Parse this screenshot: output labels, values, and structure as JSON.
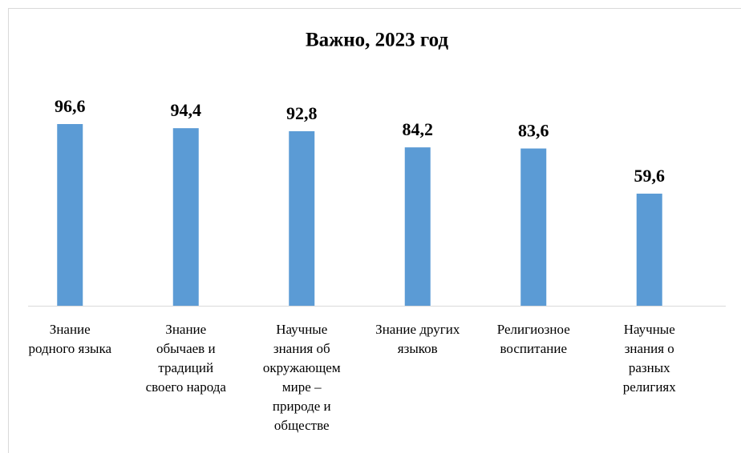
{
  "chart_data": {
    "type": "bar",
    "title": "Важно, 2023 год",
    "categories": [
      "Знание родного языка",
      "Знание обычаев и традиций своего народа",
      "Научные знания об окружающем мире – природе и обществе",
      "Знание других языков",
      "Религиозное воспитание",
      "Научные знания о разных религиях"
    ],
    "values": [
      96.6,
      94.4,
      92.8,
      84.2,
      83.6,
      59.6
    ],
    "value_labels": [
      "96,6",
      "94,4",
      "92,8",
      "84,2",
      "83,6",
      "59,6"
    ],
    "color": "#5b9bd5",
    "ylim": [
      0,
      100
    ],
    "grid": false
  }
}
